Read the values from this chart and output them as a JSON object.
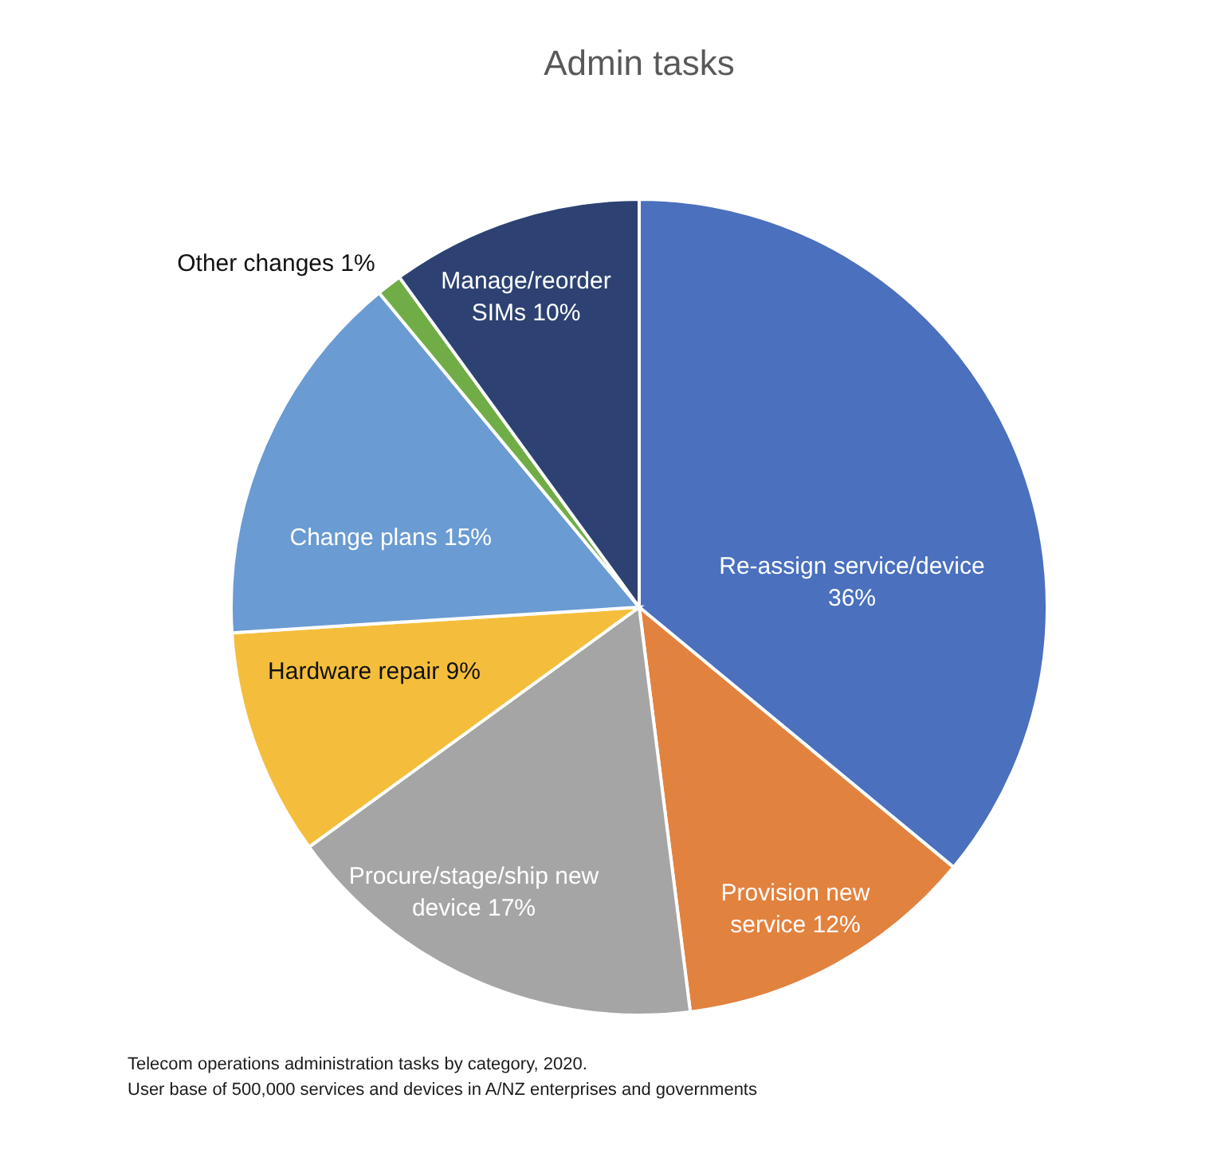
{
  "chart_data": {
    "type": "pie",
    "title": "Admin tasks",
    "categories": [
      "Re-assign service/device",
      "Provision new service",
      "Procure/stage/ship new device",
      "Hardware repair",
      "Change plans",
      "Other changes",
      "Manage/reorder SIMs"
    ],
    "values": [
      36,
      12,
      17,
      9,
      15,
      1,
      10
    ],
    "colors": [
      "#4a70be",
      "#e2823f",
      "#a5a5a5",
      "#f4be3c",
      "#6a9bd3",
      "#70ad47",
      "#2d4272"
    ],
    "value_labels": [
      "36%",
      "12%",
      "17%",
      "9%",
      "15%",
      "1%",
      "10%"
    ],
    "legend": false,
    "annotations": [
      "Telecom operations administration tasks by category, 2020.",
      "User base of 500,000 services and devices in A/NZ enterprises and governments"
    ]
  }
}
